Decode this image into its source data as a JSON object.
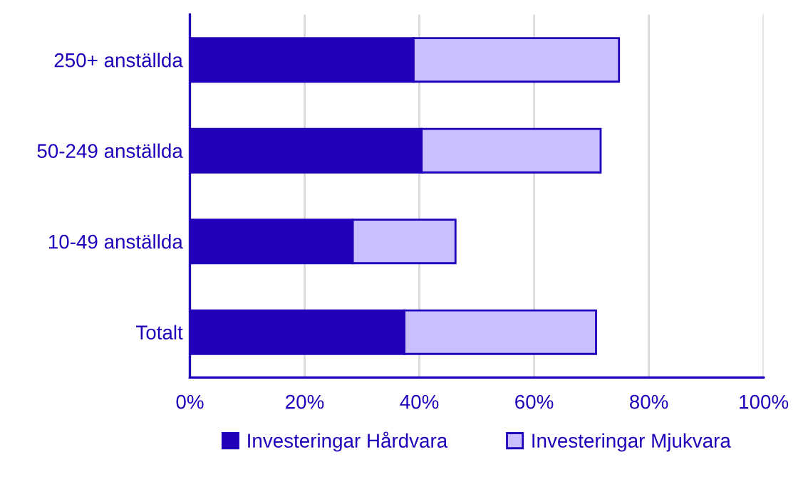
{
  "chart_data": {
    "type": "bar",
    "orientation": "horizontal",
    "stacked": true,
    "categories": [
      "250+ anställda",
      "50-249 anställda",
      "10-49 anställda",
      "Totalt"
    ],
    "series": [
      {
        "name": "Investeringar Hårdvara",
        "color": "#2200bb",
        "values": [
          39,
          40.4,
          28.4,
          37.4
        ]
      },
      {
        "name": "Investeringar Mjukvara",
        "color": "#c9c0ff",
        "values": [
          35.8,
          31.2,
          17.9,
          33.4
        ]
      }
    ],
    "xlim": [
      0,
      100
    ],
    "xticks": [
      {
        "value": 0,
        "label": "0%"
      },
      {
        "value": 20,
        "label": "20%"
      },
      {
        "value": 40,
        "label": "40%"
      },
      {
        "value": 60,
        "label": "60%"
      },
      {
        "value": 80,
        "label": "80%"
      },
      {
        "value": 100,
        "label": "100%"
      }
    ],
    "grid": "x",
    "legend": "bottom"
  }
}
